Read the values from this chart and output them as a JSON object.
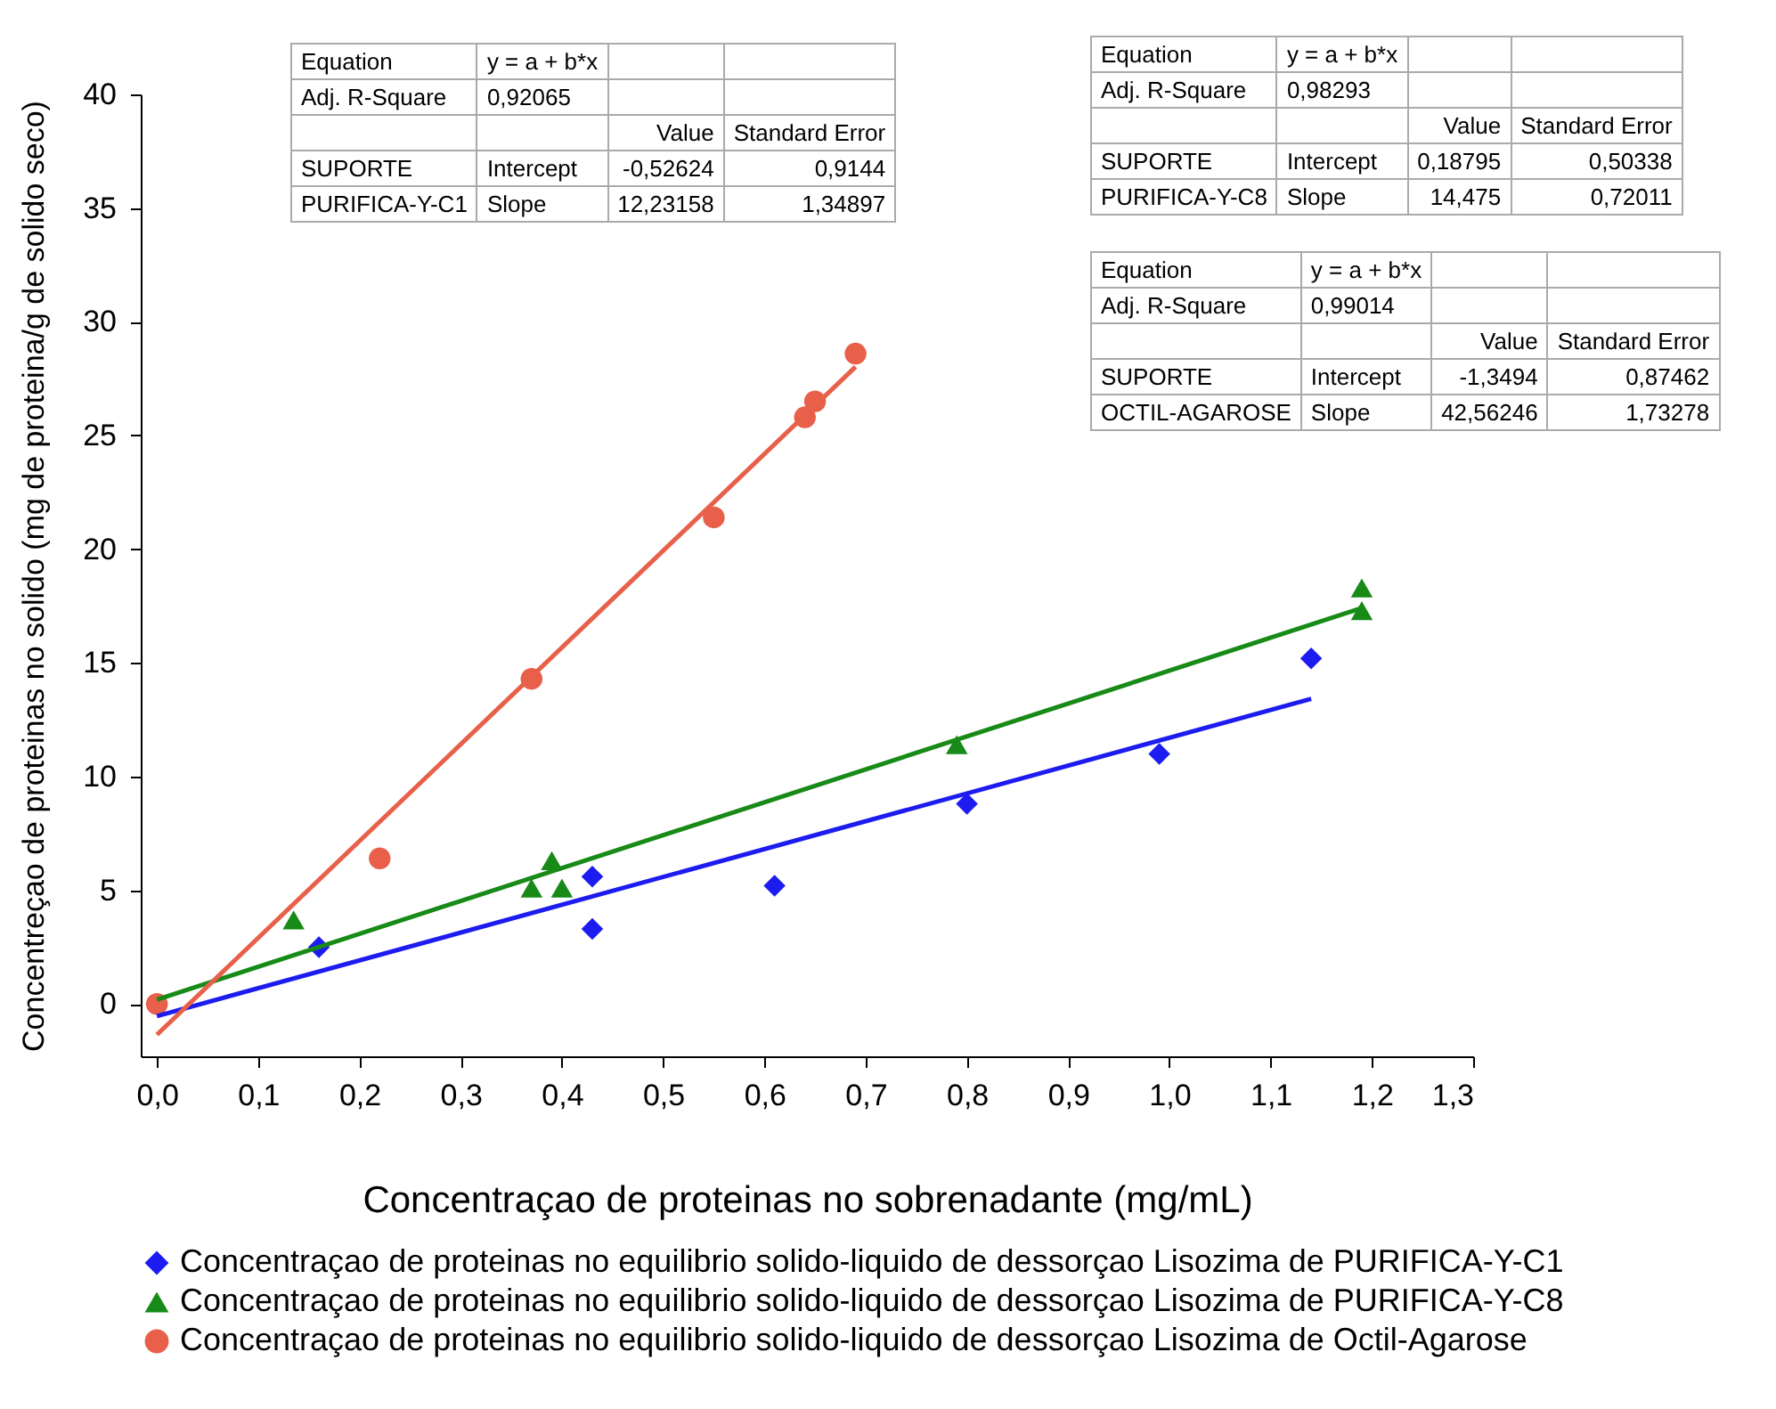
{
  "chart_data": {
    "type": "scatter",
    "xlabel": "Concentraçao de proteinas no sobrenadante (mg/mL)",
    "ylabel": "Concentreçao de proteinas no solido (mg de proteina/g de solido seco)",
    "xlim": [
      -0.016,
      1.3
    ],
    "ylim": [
      -2.3,
      40
    ],
    "xticks": [
      {
        "value": 0,
        "label": "0,0"
      },
      {
        "value": 0.1,
        "label": "0,1"
      },
      {
        "value": 0.2,
        "label": "0,2"
      },
      {
        "value": 0.3,
        "label": "0,3"
      },
      {
        "value": 0.4,
        "label": "0,4"
      },
      {
        "value": 0.5,
        "label": "0,5"
      },
      {
        "value": 0.6,
        "label": "0,6"
      },
      {
        "value": 0.7,
        "label": "0,7"
      },
      {
        "value": 0.8,
        "label": "0,8"
      },
      {
        "value": 0.9,
        "label": "0,9"
      },
      {
        "value": 1.0,
        "label": "1,0"
      },
      {
        "value": 1.1,
        "label": "1,1"
      },
      {
        "value": 1.2,
        "label": "1,2"
      },
      {
        "value": 1.3,
        "label": "1,3"
      }
    ],
    "yticks": [
      0,
      5,
      10,
      15,
      20,
      25,
      30,
      35,
      40
    ],
    "grid": false,
    "legend": "bottom",
    "series": [
      {
        "name": "Concentraçao de proteinas no equilibrio solido-liquido de dessorçao Lisozima de PURIFICA-Y-C1",
        "color": "#1c1cf0",
        "marker": "diamond",
        "x": [
          0.16,
          0.43,
          0.43,
          0.61,
          0.8,
          0.99,
          1.14
        ],
        "values": [
          2.5,
          3.3,
          5.6,
          5.2,
          8.8,
          11.0,
          15.2
        ]
      },
      {
        "name": "Concentraçao de proteinas no equilibrio solido-liquido de dessorçao Lisozima de PURIFICA-Y-C8",
        "color": "#178a17",
        "marker": "triangle",
        "x": [
          0.135,
          0.37,
          0.39,
          0.4,
          0.79,
          1.19,
          1.19
        ],
        "values": [
          3.7,
          5.1,
          6.3,
          5.1,
          11.4,
          18.3,
          17.3
        ]
      },
      {
        "name": "Concentraçao de proteinas no equilibrio solido-liquido de dessorçao Lisozima de Octil-Agarose",
        "color": "#e8604a",
        "marker": "circle",
        "x": [
          0,
          0.22,
          0.37,
          0.55,
          0.64,
          0.65,
          0.69
        ],
        "values": [
          0,
          6.4,
          14.3,
          21.4,
          25.8,
          26.5,
          28.6
        ]
      },
      {
        "type": "line",
        "color": "#1c1cf0",
        "x": [
          0,
          1.14
        ],
        "values": [
          -0.53,
          13.42
        ]
      },
      {
        "type": "line",
        "color": "#178a17",
        "x": [
          0,
          1.19
        ],
        "values": [
          0.19,
          17.41
        ]
      },
      {
        "type": "line",
        "color": "#e8604a",
        "x": [
          0,
          0.69
        ],
        "values": [
          -1.35,
          28.02
        ]
      }
    ],
    "annotations": [
      "Equation",
      "y = a + b*x",
      "Adj. R-Square",
      "0,92065",
      "Value",
      "Standard Error",
      "SUPORTE",
      "Intercept",
      "-0,52624",
      "0,9144",
      "PURIFICA-Y-C1",
      "Slope",
      "12,23158",
      "1,34897",
      "Equation",
      "y = a + b*x",
      "Adj. R-Square",
      "0,98293",
      "Value",
      "Standard Error",
      "SUPORTE",
      "Intercept",
      "0,18795",
      "0,50338",
      "PURIFICA-Y-C8",
      "Slope",
      "14,475",
      "0,72011",
      "Equation",
      "y = a + b*x",
      "Adj. R-Square",
      "0,99014",
      "Value",
      "Standard Error",
      "SUPORTE",
      "Intercept",
      "-1,3494",
      "0,87462",
      "OCTIL-AGAROSE",
      "Slope",
      "42,56246",
      "1,73278"
    ]
  }
}
